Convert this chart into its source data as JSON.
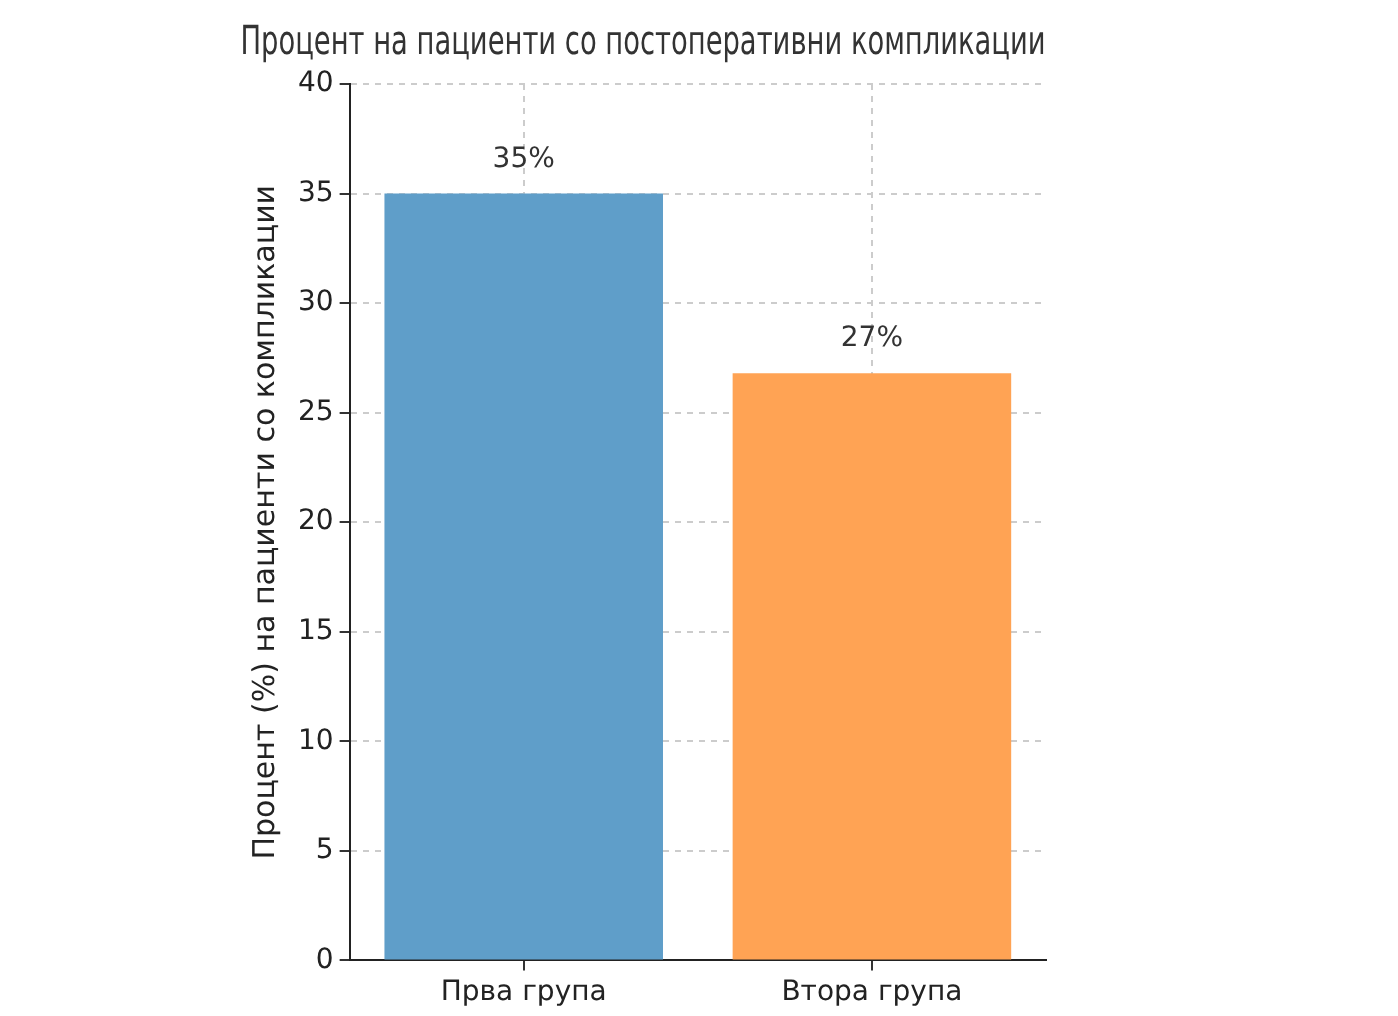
{
  "chart_data": {
    "type": "bar",
    "title": "Процент на пациенти со постоперативни компликации",
    "ylabel": "Процент (%) на пациенти со компликации",
    "categories": [
      "Прва група",
      "Втора група"
    ],
    "values": [
      35,
      26.8
    ],
    "value_labels": [
      "35%",
      "27%"
    ],
    "colors": [
      "#5f9ec9",
      "#ffa354"
    ],
    "ylim": [
      0,
      40
    ],
    "yticks": [
      0,
      5,
      10,
      15,
      20,
      25,
      30,
      35,
      40
    ],
    "grid": true
  }
}
